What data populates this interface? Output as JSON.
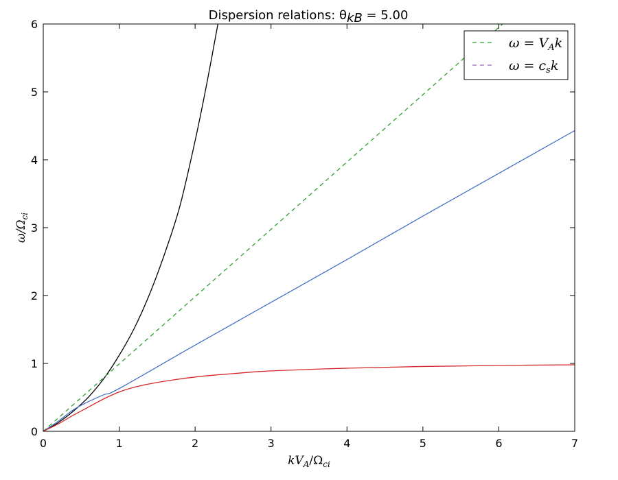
{
  "chart_data": {
    "type": "line",
    "title": "Dispersion relations: θ",
    "title_sub": "kB",
    "title_suffix": " = 5.00",
    "xlabel": "kV",
    "xlabel_sub1": "A",
    "xlabel_mid": "/Ω",
    "xlabel_sub2": "ci",
    "ylabel": "ω/Ω",
    "ylabel_sub": "ci",
    "xlim": [
      0,
      7
    ],
    "ylim": [
      0,
      6
    ],
    "x_ticks": [
      "0",
      "1",
      "2",
      "3",
      "4",
      "5",
      "6",
      "7"
    ],
    "y_ticks": [
      "0",
      "1",
      "2",
      "3",
      "4",
      "5",
      "6"
    ],
    "grid": false,
    "legend_position": "top-right",
    "legend": [
      {
        "label": "ω = V",
        "sub": "A",
        "tail": "k",
        "color": "#2ca02c",
        "dash": true
      },
      {
        "label": "ω = c",
        "sub": "s",
        "tail": "k",
        "color": "#9467bd",
        "dash": true
      }
    ],
    "series": [
      {
        "color": "#000000",
        "dash": false,
        "x": [
          0,
          0.2,
          0.4,
          0.6,
          0.8,
          1.0,
          1.2,
          1.4,
          1.6,
          1.8,
          2.0,
          2.15,
          2.3
        ],
        "y": [
          0,
          0.13,
          0.3,
          0.51,
          0.78,
          1.12,
          1.52,
          2.02,
          2.62,
          3.32,
          4.28,
          5.1,
          6.0
        ]
      },
      {
        "color": "#2ca02c",
        "dash": true,
        "x": [
          0,
          6.05
        ],
        "y": [
          0,
          6.0
        ]
      },
      {
        "color": "#4472c4",
        "dash": false,
        "x": [
          0,
          0.2,
          0.4,
          0.6,
          0.8,
          1.0,
          2.0,
          3.0,
          4.0,
          5.0,
          6.0,
          7.0
        ],
        "y": [
          0,
          0.15,
          0.32,
          0.44,
          0.54,
          0.63,
          1.27,
          1.9,
          2.53,
          3.17,
          3.8,
          4.43
        ]
      },
      {
        "color": "#d62728",
        "dash": false,
        "x": [
          0,
          0.2,
          0.4,
          0.6,
          0.8,
          1.0,
          1.2,
          1.5,
          2.0,
          2.5,
          3.0,
          4.0,
          5.0,
          6.0,
          7.0
        ],
        "y": [
          0,
          0.11,
          0.24,
          0.36,
          0.48,
          0.58,
          0.65,
          0.72,
          0.8,
          0.85,
          0.89,
          0.93,
          0.955,
          0.97,
          0.98
        ]
      }
    ]
  }
}
